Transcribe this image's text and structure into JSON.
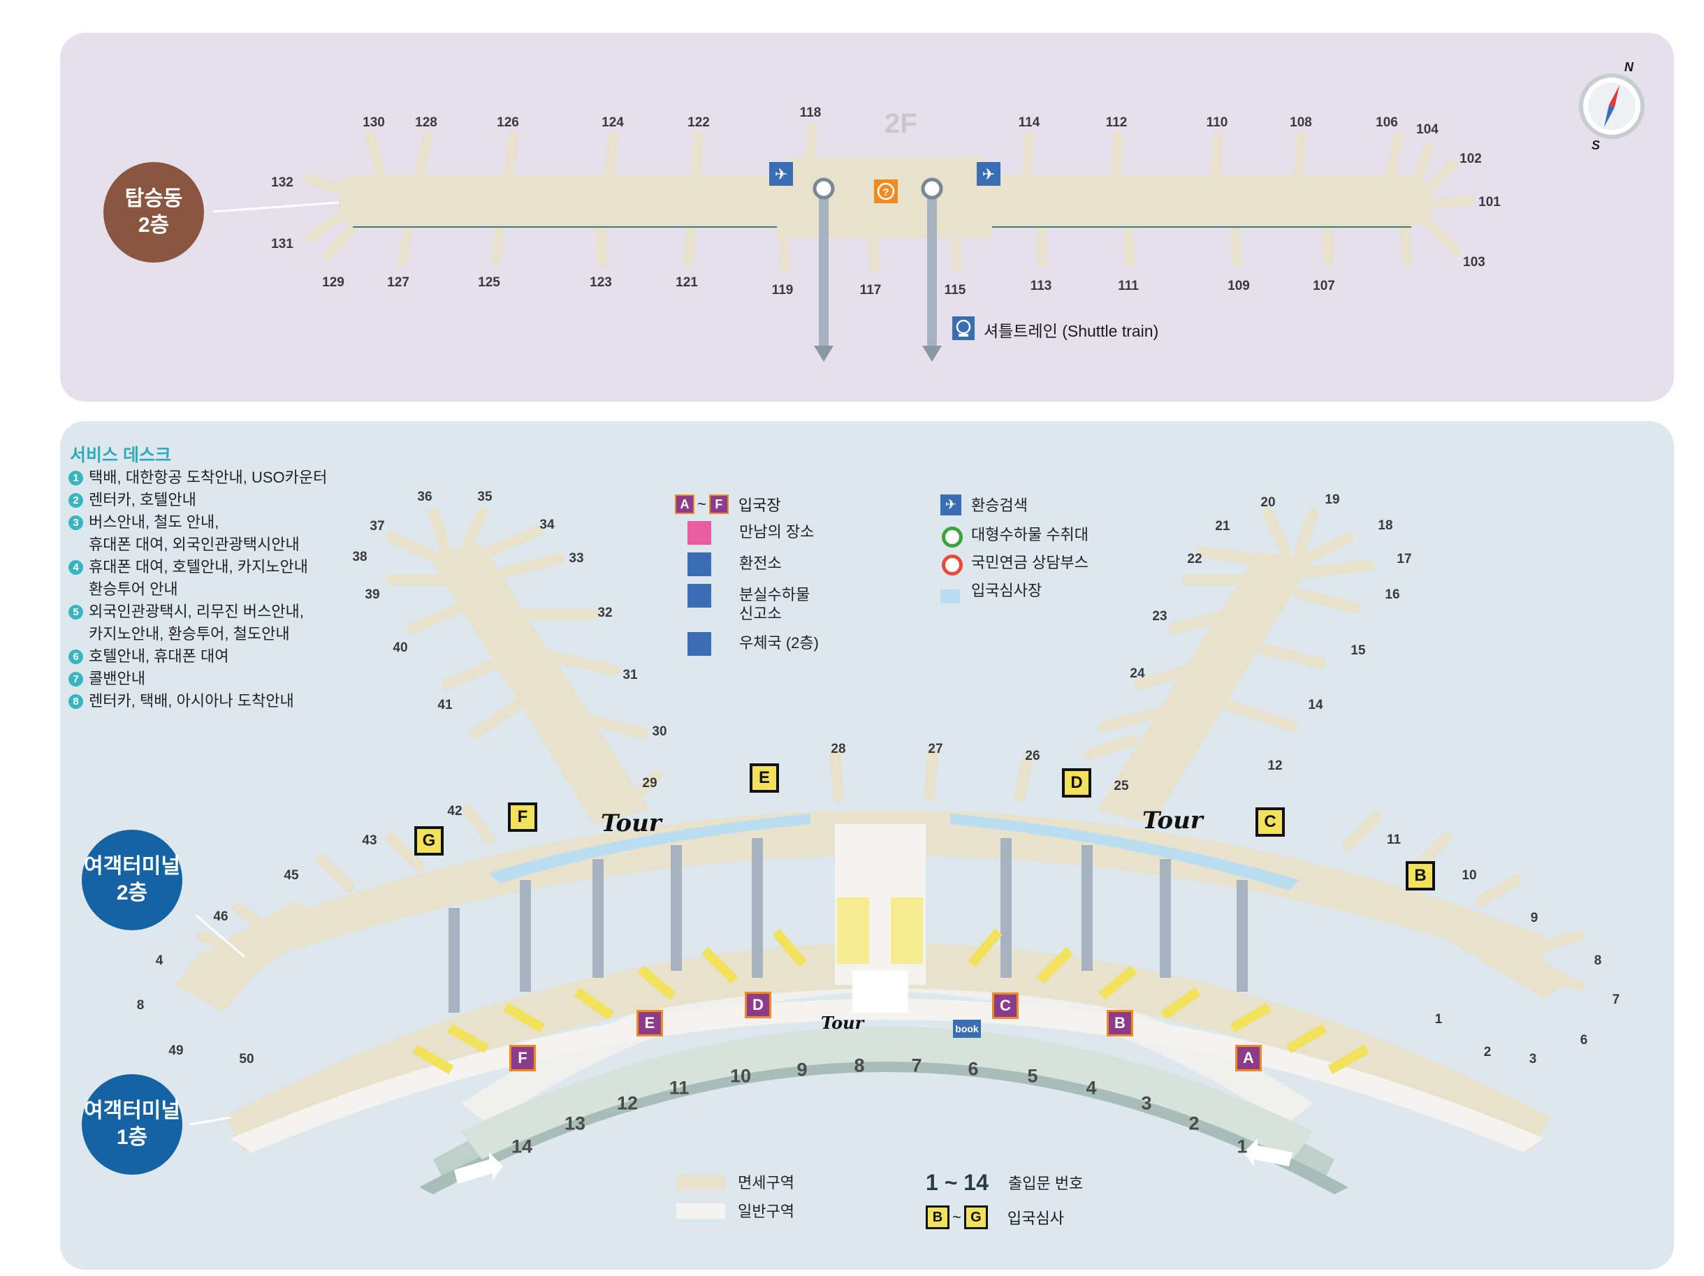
{
  "colors": {
    "top_panel_bg": "#e6dfec",
    "bottom_panel_bg": "#dde7ee",
    "concourse_fill": "#e8e1cc",
    "general_area_fill": "#f0f0ee",
    "immigration_blue": "#b9def0",
    "shuttle_gray": "#a6b3bf",
    "brown_label": "#8a5640",
    "blue_label": "#1663a3",
    "icon_blue": "#3a6eb3",
    "icon_orange": "#f28a22",
    "icon_purple": "#8c3c8b",
    "icon_pink": "#e95ca0",
    "teal_number": "#39b5bf",
    "yellow_desk": "#f2e15a"
  },
  "concourse": {
    "label_line1": "탑승동",
    "label_line2": "2층",
    "floor_label": "2F",
    "compass": {
      "north": "N",
      "south": "S"
    },
    "gates_top": [
      "130",
      "128",
      "126",
      "124",
      "122",
      "118",
      "114",
      "112",
      "110",
      "108",
      "106",
      "104",
      "102"
    ],
    "gates_bottom": [
      "129",
      "127",
      "125",
      "123",
      "121",
      "119",
      "117",
      "115",
      "113",
      "111",
      "109",
      "107",
      "103"
    ],
    "gates_side": [
      "132",
      "131",
      "101"
    ],
    "shuttle_legend": "셔틀트레인 (Shuttle train)"
  },
  "terminal": {
    "label_2f_line1": "여객터미널",
    "label_2f_line2": "2층",
    "label_1f_line1": "여객터미널",
    "label_1f_line2": "1층",
    "service_desk_title": "서비스 데스크",
    "service_desk_items": [
      {
        "num": "1",
        "lines": [
          "택배, 대한항공 도착안내, USO카운터"
        ]
      },
      {
        "num": "2",
        "lines": [
          "렌터카, 호텔안내"
        ]
      },
      {
        "num": "3",
        "lines": [
          "버스안내, 철도 안내,",
          "휴대폰 대여, 외국인관광택시안내"
        ]
      },
      {
        "num": "4",
        "lines": [
          "휴대폰 대여, 호텔안내, 카지노안내",
          "환승투어 안내"
        ]
      },
      {
        "num": "5",
        "lines": [
          "외국인관광택시, 리무진 버스안내,",
          "카지노안내, 환승투어, 철도안내"
        ]
      },
      {
        "num": "6",
        "lines": [
          "호텔안내, 휴대폰 대여"
        ]
      },
      {
        "num": "7",
        "lines": [
          "콜밴안내"
        ]
      },
      {
        "num": "8",
        "lines": [
          "렌터카, 택배, 아시아나 도착안내"
        ]
      }
    ],
    "legend_mid": {
      "arrival_hall_badges": [
        "A",
        "F"
      ],
      "arrival_hall_sep": "~",
      "arrival_hall": "입국장",
      "meeting_point": "만남의 장소",
      "currency_exchange": "환전소",
      "lost_found_line1": "분실수하물",
      "lost_found_line2": "신고소",
      "post_office": "우체국 (2층)"
    },
    "legend_right": {
      "transfer_check": "환승검색",
      "oversize_baggage": "대형수하물 수취대",
      "pension_booth": "국민연금 상담부스",
      "immigration_area": "입국심사장"
    },
    "legend_bottom": {
      "duty_free": "면세구역",
      "general_area": "일반구역",
      "entrance_range": "1 ~ 14",
      "entrance_label": "출입문 번호",
      "immigration_badges": [
        "B",
        "G"
      ],
      "immigration_sep": "~",
      "immigration_label": "입국심사"
    },
    "gates": [
      "36",
      "35",
      "34",
      "33",
      "32",
      "31",
      "30",
      "29",
      "37",
      "38",
      "39",
      "40",
      "41",
      "42",
      "43",
      "45",
      "46",
      "4",
      "8",
      "49",
      "50",
      "28",
      "27",
      "26",
      "25",
      "20",
      "19",
      "18",
      "17",
      "16",
      "15",
      "14",
      "12",
      "21",
      "22",
      "23",
      "24",
      "11",
      "10",
      "9",
      "8",
      "7",
      "6",
      "3",
      "2",
      "1"
    ],
    "immigration_badges": [
      "E",
      "F",
      "G",
      "D",
      "C",
      "B"
    ],
    "tour_label": "Tour",
    "arrival_badges": [
      "F",
      "E",
      "D",
      "C",
      "B",
      "A"
    ],
    "entrances": [
      "14",
      "13",
      "12",
      "11",
      "10",
      "9",
      "8",
      "7",
      "6",
      "5",
      "4",
      "3",
      "2",
      "1"
    ],
    "book_label": "book"
  }
}
